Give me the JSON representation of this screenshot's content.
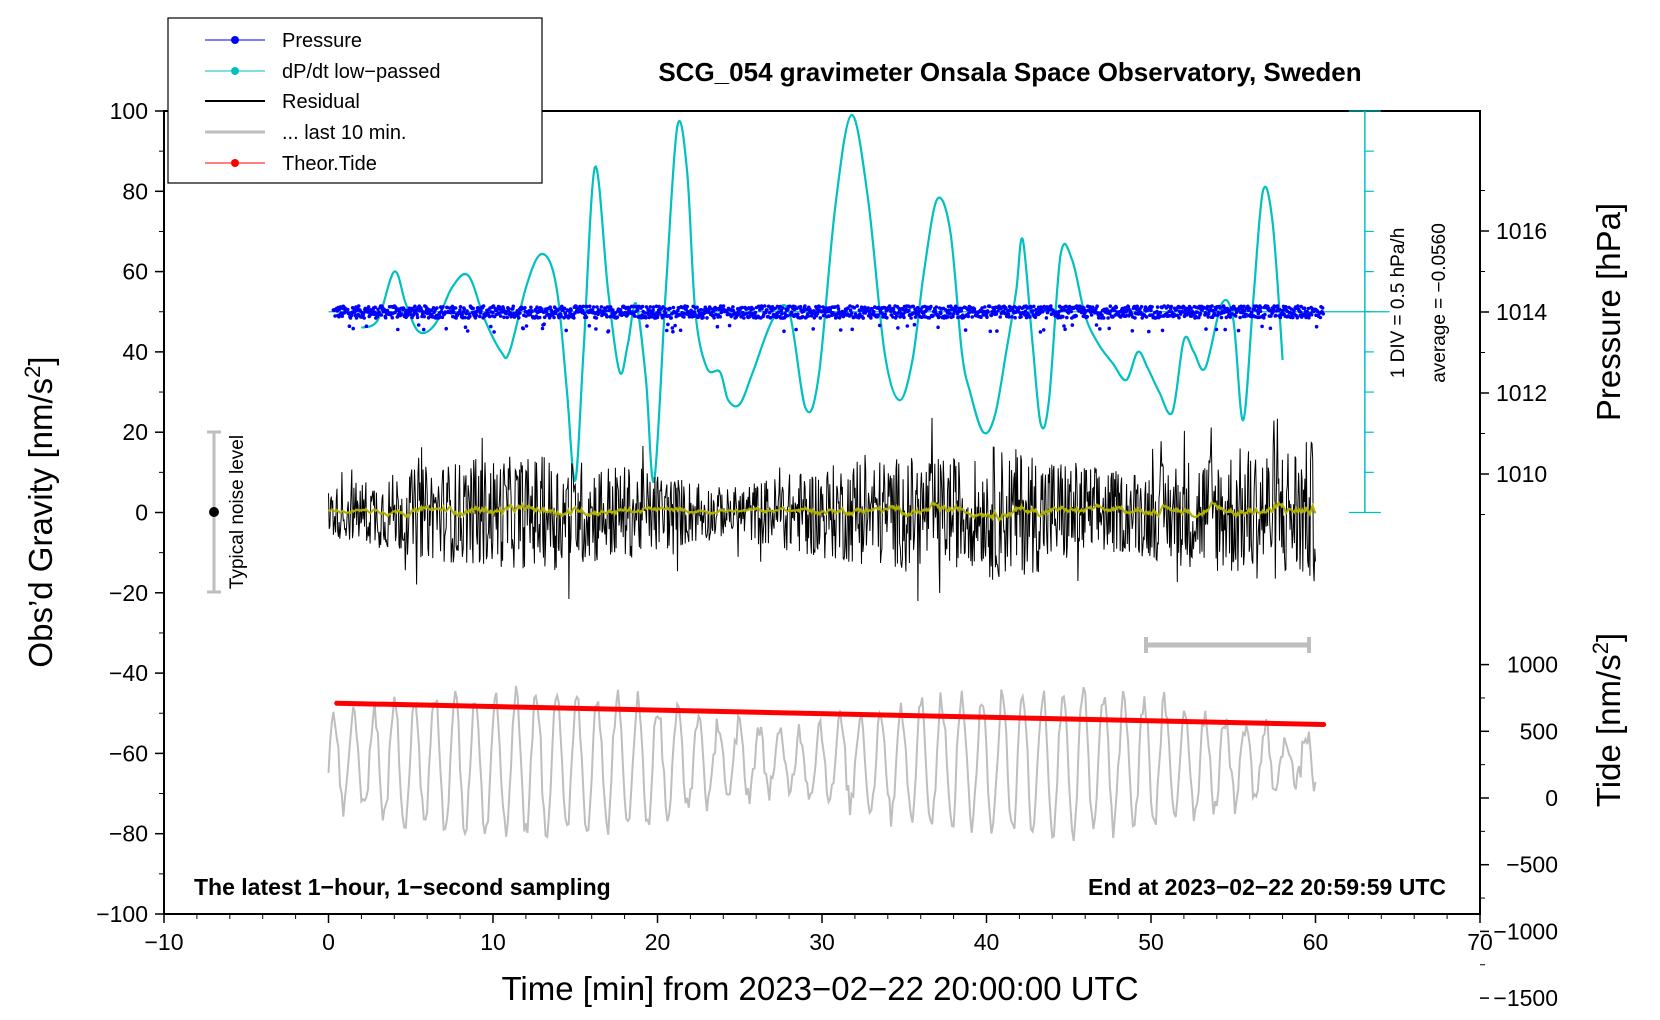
{
  "chart_data": {
    "type": "line",
    "title": "SCG_054 gravimeter Onsala Space Observatory, Sweden",
    "xlabel": "Time [min] from 2023−02−22 20:00:00 UTC",
    "ylabel": "Obs’d Gravity [nm/s²]",
    "y2label_pressure": "Pressure [hPa]",
    "y2label_tide": "Tide [nm/s²]",
    "xlim": [
      -10,
      70
    ],
    "ylim": [
      -100,
      100
    ],
    "pressure_axis": {
      "ticks": [
        1010,
        1012,
        1014,
        1016
      ],
      "tick_labels": [
        "1010",
        "1012",
        "1014",
        "1016"
      ]
    },
    "tide_axis": {
      "ticks": [
        -1500,
        -1000,
        -500,
        0,
        500,
        1000
      ],
      "tick_labels": [
        "−1500",
        "−1000",
        "−500",
        "0",
        "500",
        "1000"
      ]
    },
    "x_ticks": [
      -10,
      0,
      10,
      20,
      30,
      40,
      50,
      60,
      70
    ],
    "x_tick_labels": [
      "−10",
      "0",
      "10",
      "20",
      "30",
      "40",
      "50",
      "60",
      "70"
    ],
    "y_ticks": [
      -100,
      -80,
      -60,
      -40,
      -20,
      0,
      20,
      40,
      60,
      80,
      100
    ],
    "y_tick_labels": [
      "−100",
      "−80",
      "−60",
      "−40",
      "−20",
      "0",
      "20",
      "40",
      "60",
      "80",
      "100"
    ],
    "legend": [
      {
        "name": "Pressure",
        "color": "#0000ff",
        "marker": true
      },
      {
        "name": "dP/dt low−passed",
        "color": "#00c0c0",
        "marker": true
      },
      {
        "name": "Residual",
        "color": "#000000",
        "marker": false
      },
      {
        "name": "... last 10 min.",
        "color": "#bebebe",
        "marker": false
      },
      {
        "name": "Theor.Tide",
        "color": "#ff0000",
        "marker": true
      }
    ],
    "series": [
      {
        "name": "Pressure",
        "unit": "hPa",
        "x_range": [
          0.3,
          60.5
        ],
        "mean": 1014.0,
        "scatter": 0.15
      },
      {
        "name": "dP/dt low−passed",
        "unit": "gravity-axis units",
        "baseline": 50,
        "x": [
          2,
          3,
          4,
          4.7,
          5.5,
          6.5,
          7.5,
          8.5,
          9.5,
          10.5,
          11,
          12,
          12.8,
          13.5,
          14,
          14.5,
          15,
          15.5,
          16.2,
          17,
          17.7,
          18.2,
          18.7,
          19.3,
          19.8,
          20.5,
          21.2,
          21.8,
          22.3,
          23,
          23.8,
          24.3,
          25,
          25.8,
          27,
          28,
          29,
          29.8,
          30.8,
          31.8,
          32.8,
          33.8,
          34.7,
          35.5,
          36.2,
          37,
          37.8,
          38.5,
          39,
          39.8,
          40.5,
          41.2,
          41.8,
          42.2,
          42.8,
          43.3,
          43.8,
          44.5,
          45.2,
          46,
          46.8,
          47.7,
          48.5,
          49.2,
          49.8,
          50.5,
          51.3,
          52,
          52.6,
          53.3,
          54.3,
          55,
          55.6,
          56.2,
          56.8,
          57.4,
          58
        ],
        "y": [
          46,
          48,
          60,
          52,
          45,
          47,
          56,
          59,
          48,
          40,
          40,
          56,
          64,
          62,
          52,
          30,
          8,
          40,
          86,
          55,
          35,
          42,
          52,
          33,
          8,
          55,
          96,
          85,
          50,
          36,
          35,
          28,
          27,
          35,
          48,
          50,
          26,
          34,
          76,
          99,
          78,
          40,
          28,
          38,
          60,
          78,
          70,
          40,
          30,
          20,
          24,
          40,
          55,
          68,
          42,
          22,
          28,
          64,
          63,
          49,
          42,
          37,
          33,
          40,
          36,
          30,
          25,
          43,
          40,
          36,
          52,
          48,
          23,
          52,
          80,
          72,
          38
        ]
      },
      {
        "name": "Residual",
        "unit": "nm/s²",
        "x_range": [
          0,
          60
        ],
        "amplitude_range": [
          -24,
          26
        ]
      },
      {
        "name": "Residual (smoothed)",
        "color": "#b0b000",
        "x_range": [
          0,
          60
        ],
        "mean": 0.5
      },
      {
        "name": "... last 10 min.",
        "unit": "nm/s²",
        "x_range": [
          0,
          60
        ],
        "center": -62,
        "amplitude_range": [
          -84,
          -41
        ]
      },
      {
        "name": "Theor.Tide",
        "unit": "nm/s²",
        "x": [
          0.5,
          60.5
        ],
        "y": [
          -47.5,
          -52.8
        ]
      }
    ],
    "dpdt_scale": {
      "label_div": "1 DIV = 0.5 hPa/h",
      "label_avg": "average = −0.0560"
    },
    "noise_bar": {
      "label": "Typical noise level",
      "x": -7,
      "y_center": 0,
      "y_half_range": 20
    },
    "ten_min_bar": {
      "x": [
        50,
        60
      ],
      "y": -33
    }
  },
  "notes": {
    "bottom_left": "The latest 1−hour, 1−second sampling",
    "bottom_right": "End at 2023−02−22 20:59:59 UTC"
  },
  "colors": {
    "pressure": "#0000ff",
    "dpdt": "#00c0c0",
    "residual": "#000000",
    "residual_smooth": "#b0b000",
    "last10": "#bebebe",
    "tide": "#ff0000"
  }
}
